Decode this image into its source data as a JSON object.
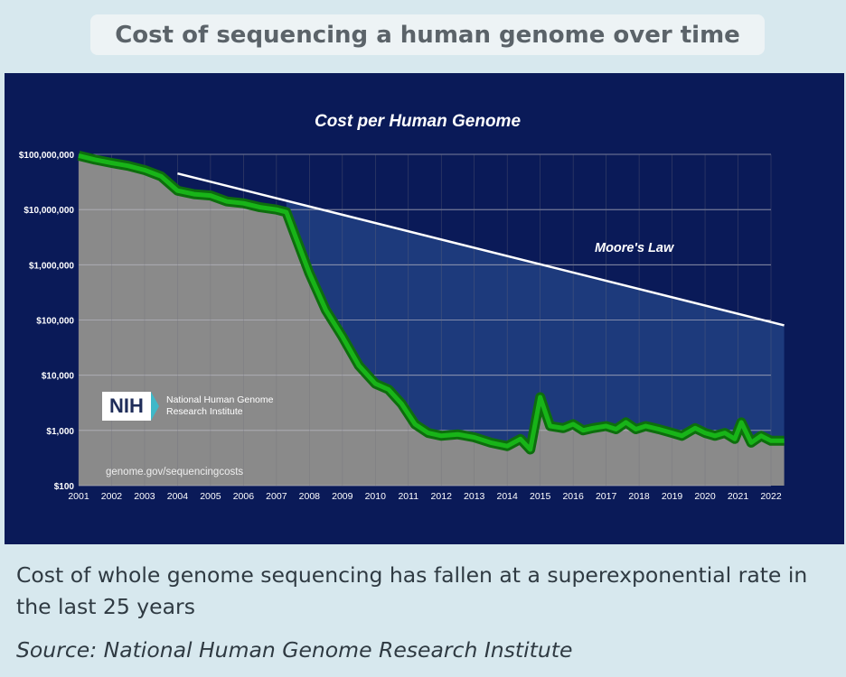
{
  "header": {
    "title": "Cost of sequencing a human genome over time"
  },
  "caption": "Cost of whole genome sequencing has fallen at a superexponential rate in the last 25 years",
  "source": "Source: National Human Genome Research Institute",
  "logo": {
    "badge": "NIH",
    "org_line1": "National Human Genome",
    "org_line2": "Research Institute",
    "url": "genome.gov/sequencingcosts"
  },
  "colors": {
    "panel_bg": "#0a1a58",
    "plot_gray": "#8a8a8a",
    "area_blue": "#1d3a7c",
    "cost_line": "#0a9a0a",
    "moore_line": "#ffffff"
  },
  "chart_data": {
    "type": "area",
    "title": "Cost per Human Genome",
    "xlabel": "",
    "ylabel": "",
    "scale_y": "log",
    "ylim": [
      100,
      100000000
    ],
    "xlim": [
      2001,
      2022
    ],
    "grid": true,
    "x_ticks": [
      "2001",
      "2002",
      "2003",
      "2004",
      "2005",
      "2006",
      "2007",
      "2008",
      "2009",
      "2010",
      "2011",
      "2012",
      "2013",
      "2014",
      "2015",
      "2016",
      "2017",
      "2018",
      "2019",
      "2020",
      "2021",
      "2022"
    ],
    "y_ticks": [
      "$100",
      "$1,000",
      "$10,000",
      "$100,000",
      "$1,000,000",
      "$10,000,000",
      "$100,000,000"
    ],
    "annotations": [
      {
        "text": "Moore's Law"
      }
    ],
    "series": [
      {
        "name": "",
        "x": [
          2001.0,
          2001.5,
          2002.0,
          2002.5,
          2003.0,
          2003.5,
          2004.0,
          2004.5,
          2005.0,
          2005.5,
          2006.0,
          2006.5,
          2007.0,
          2007.3,
          2007.6,
          2008.0,
          2008.5,
          2009.0,
          2009.5,
          2010.0,
          2010.4,
          2010.8,
          2011.2,
          2011.6,
          2012.0,
          2012.5,
          2013.0,
          2013.5,
          2014.0,
          2014.4,
          2014.7,
          2015.0,
          2015.3,
          2015.7,
          2016.0,
          2016.3,
          2016.6,
          2017.0,
          2017.3,
          2017.6,
          2017.9,
          2018.2,
          2018.6,
          2019.0,
          2019.3,
          2019.7,
          2020.0,
          2020.3,
          2020.6,
          2020.9,
          2021.1,
          2021.4,
          2021.7,
          2022.0,
          2022.4
        ],
        "y": [
          95000000,
          80000000,
          70000000,
          62000000,
          52000000,
          40000000,
          22000000,
          19000000,
          18000000,
          14000000,
          13000000,
          11000000,
          10000000,
          9000000,
          3000000,
          700000,
          150000,
          50000,
          15000,
          7000,
          5500,
          3000,
          1300,
          900,
          800,
          850,
          750,
          600,
          520,
          700,
          450,
          4000,
          1200,
          1100,
          1300,
          1000,
          1100,
          1200,
          1050,
          1400,
          1050,
          1200,
          1050,
          900,
          800,
          1100,
          900,
          800,
          900,
          700,
          1400,
          600,
          800,
          650,
          650
        ]
      },
      {
        "name": "Moore's Law",
        "x": [
          2004.0,
          2022.4
        ],
        "y": [
          45000000,
          80000
        ]
      }
    ]
  }
}
